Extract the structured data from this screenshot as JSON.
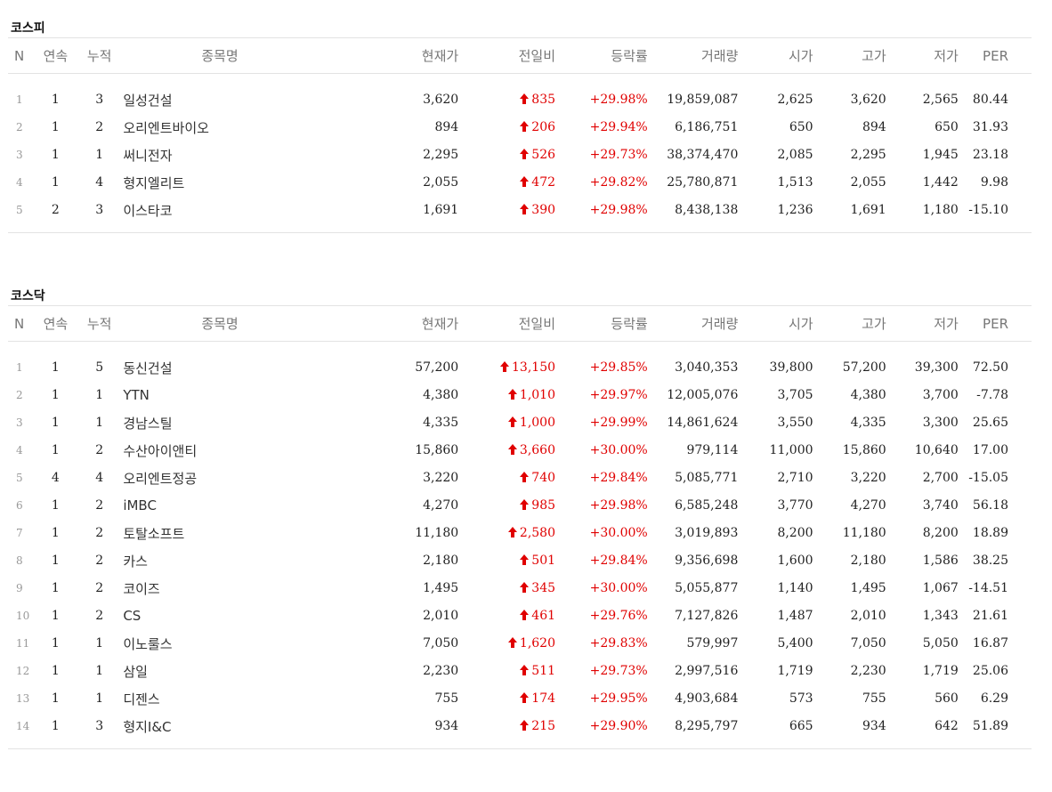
{
  "headers": [
    "N",
    "연속",
    "누적",
    "종목명",
    "현재가",
    "전일비",
    "등락률",
    "거래량",
    "시가",
    "고가",
    "저가",
    "PER"
  ],
  "arrow_color": "#e00000",
  "kospi": {
    "title": "코스피",
    "rows": [
      {
        "n": "1",
        "streak": "1",
        "total": "3",
        "name": "일성건설",
        "price": "3,620",
        "change": "835",
        "rate": "+29.98%",
        "volume": "19,859,087",
        "open": "2,625",
        "high": "3,620",
        "low": "2,565",
        "per": "80.44"
      },
      {
        "n": "2",
        "streak": "1",
        "total": "2",
        "name": "오리엔트바이오",
        "price": "894",
        "change": "206",
        "rate": "+29.94%",
        "volume": "6,186,751",
        "open": "650",
        "high": "894",
        "low": "650",
        "per": "31.93"
      },
      {
        "n": "3",
        "streak": "1",
        "total": "1",
        "name": "써니전자",
        "price": "2,295",
        "change": "526",
        "rate": "+29.73%",
        "volume": "38,374,470",
        "open": "2,085",
        "high": "2,295",
        "low": "1,945",
        "per": "23.18"
      },
      {
        "n": "4",
        "streak": "1",
        "total": "4",
        "name": "형지엘리트",
        "price": "2,055",
        "change": "472",
        "rate": "+29.82%",
        "volume": "25,780,871",
        "open": "1,513",
        "high": "2,055",
        "low": "1,442",
        "per": "9.98"
      },
      {
        "n": "5",
        "streak": "2",
        "total": "3",
        "name": "이스타코",
        "price": "1,691",
        "change": "390",
        "rate": "+29.98%",
        "volume": "8,438,138",
        "open": "1,236",
        "high": "1,691",
        "low": "1,180",
        "per": "-15.10"
      }
    ]
  },
  "kosdaq": {
    "title": "코스닥",
    "rows": [
      {
        "n": "1",
        "streak": "1",
        "total": "5",
        "name": "동신건설",
        "price": "57,200",
        "change": "13,150",
        "rate": "+29.85%",
        "volume": "3,040,353",
        "open": "39,800",
        "high": "57,200",
        "low": "39,300",
        "per": "72.50"
      },
      {
        "n": "2",
        "streak": "1",
        "total": "1",
        "name": "YTN",
        "price": "4,380",
        "change": "1,010",
        "rate": "+29.97%",
        "volume": "12,005,076",
        "open": "3,705",
        "high": "4,380",
        "low": "3,700",
        "per": "-7.78"
      },
      {
        "n": "3",
        "streak": "1",
        "total": "1",
        "name": "경남스틸",
        "price": "4,335",
        "change": "1,000",
        "rate": "+29.99%",
        "volume": "14,861,624",
        "open": "3,550",
        "high": "4,335",
        "low": "3,300",
        "per": "25.65"
      },
      {
        "n": "4",
        "streak": "1",
        "total": "2",
        "name": "수산아이앤티",
        "price": "15,860",
        "change": "3,660",
        "rate": "+30.00%",
        "volume": "979,114",
        "open": "11,000",
        "high": "15,860",
        "low": "10,640",
        "per": "17.00"
      },
      {
        "n": "5",
        "streak": "4",
        "total": "4",
        "name": "오리엔트정공",
        "price": "3,220",
        "change": "740",
        "rate": "+29.84%",
        "volume": "5,085,771",
        "open": "2,710",
        "high": "3,220",
        "low": "2,700",
        "per": "-15.05"
      },
      {
        "n": "6",
        "streak": "1",
        "total": "2",
        "name": "iMBC",
        "price": "4,270",
        "change": "985",
        "rate": "+29.98%",
        "volume": "6,585,248",
        "open": "3,770",
        "high": "4,270",
        "low": "3,740",
        "per": "56.18"
      },
      {
        "n": "7",
        "streak": "1",
        "total": "2",
        "name": "토탈소프트",
        "price": "11,180",
        "change": "2,580",
        "rate": "+30.00%",
        "volume": "3,019,893",
        "open": "8,200",
        "high": "11,180",
        "low": "8,200",
        "per": "18.89"
      },
      {
        "n": "8",
        "streak": "1",
        "total": "2",
        "name": "카스",
        "price": "2,180",
        "change": "501",
        "rate": "+29.84%",
        "volume": "9,356,698",
        "open": "1,600",
        "high": "2,180",
        "low": "1,586",
        "per": "38.25"
      },
      {
        "n": "9",
        "streak": "1",
        "total": "2",
        "name": "코이즈",
        "price": "1,495",
        "change": "345",
        "rate": "+30.00%",
        "volume": "5,055,877",
        "open": "1,140",
        "high": "1,495",
        "low": "1,067",
        "per": "-14.51"
      },
      {
        "n": "10",
        "streak": "1",
        "total": "2",
        "name": "CS",
        "price": "2,010",
        "change": "461",
        "rate": "+29.76%",
        "volume": "7,127,826",
        "open": "1,487",
        "high": "2,010",
        "low": "1,343",
        "per": "21.61"
      },
      {
        "n": "11",
        "streak": "1",
        "total": "1",
        "name": "이노룰스",
        "price": "7,050",
        "change": "1,620",
        "rate": "+29.83%",
        "volume": "579,997",
        "open": "5,400",
        "high": "7,050",
        "low": "5,050",
        "per": "16.87"
      },
      {
        "n": "12",
        "streak": "1",
        "total": "1",
        "name": "삼일",
        "price": "2,230",
        "change": "511",
        "rate": "+29.73%",
        "volume": "2,997,516",
        "open": "1,719",
        "high": "2,230",
        "low": "1,719",
        "per": "25.06"
      },
      {
        "n": "13",
        "streak": "1",
        "total": "1",
        "name": "디젠스",
        "price": "755",
        "change": "174",
        "rate": "+29.95%",
        "volume": "4,903,684",
        "open": "573",
        "high": "755",
        "low": "560",
        "per": "6.29"
      },
      {
        "n": "14",
        "streak": "1",
        "total": "3",
        "name": "형지I&C",
        "price": "934",
        "change": "215",
        "rate": "+29.90%",
        "volume": "8,295,797",
        "open": "665",
        "high": "934",
        "low": "642",
        "per": "51.89"
      }
    ]
  }
}
